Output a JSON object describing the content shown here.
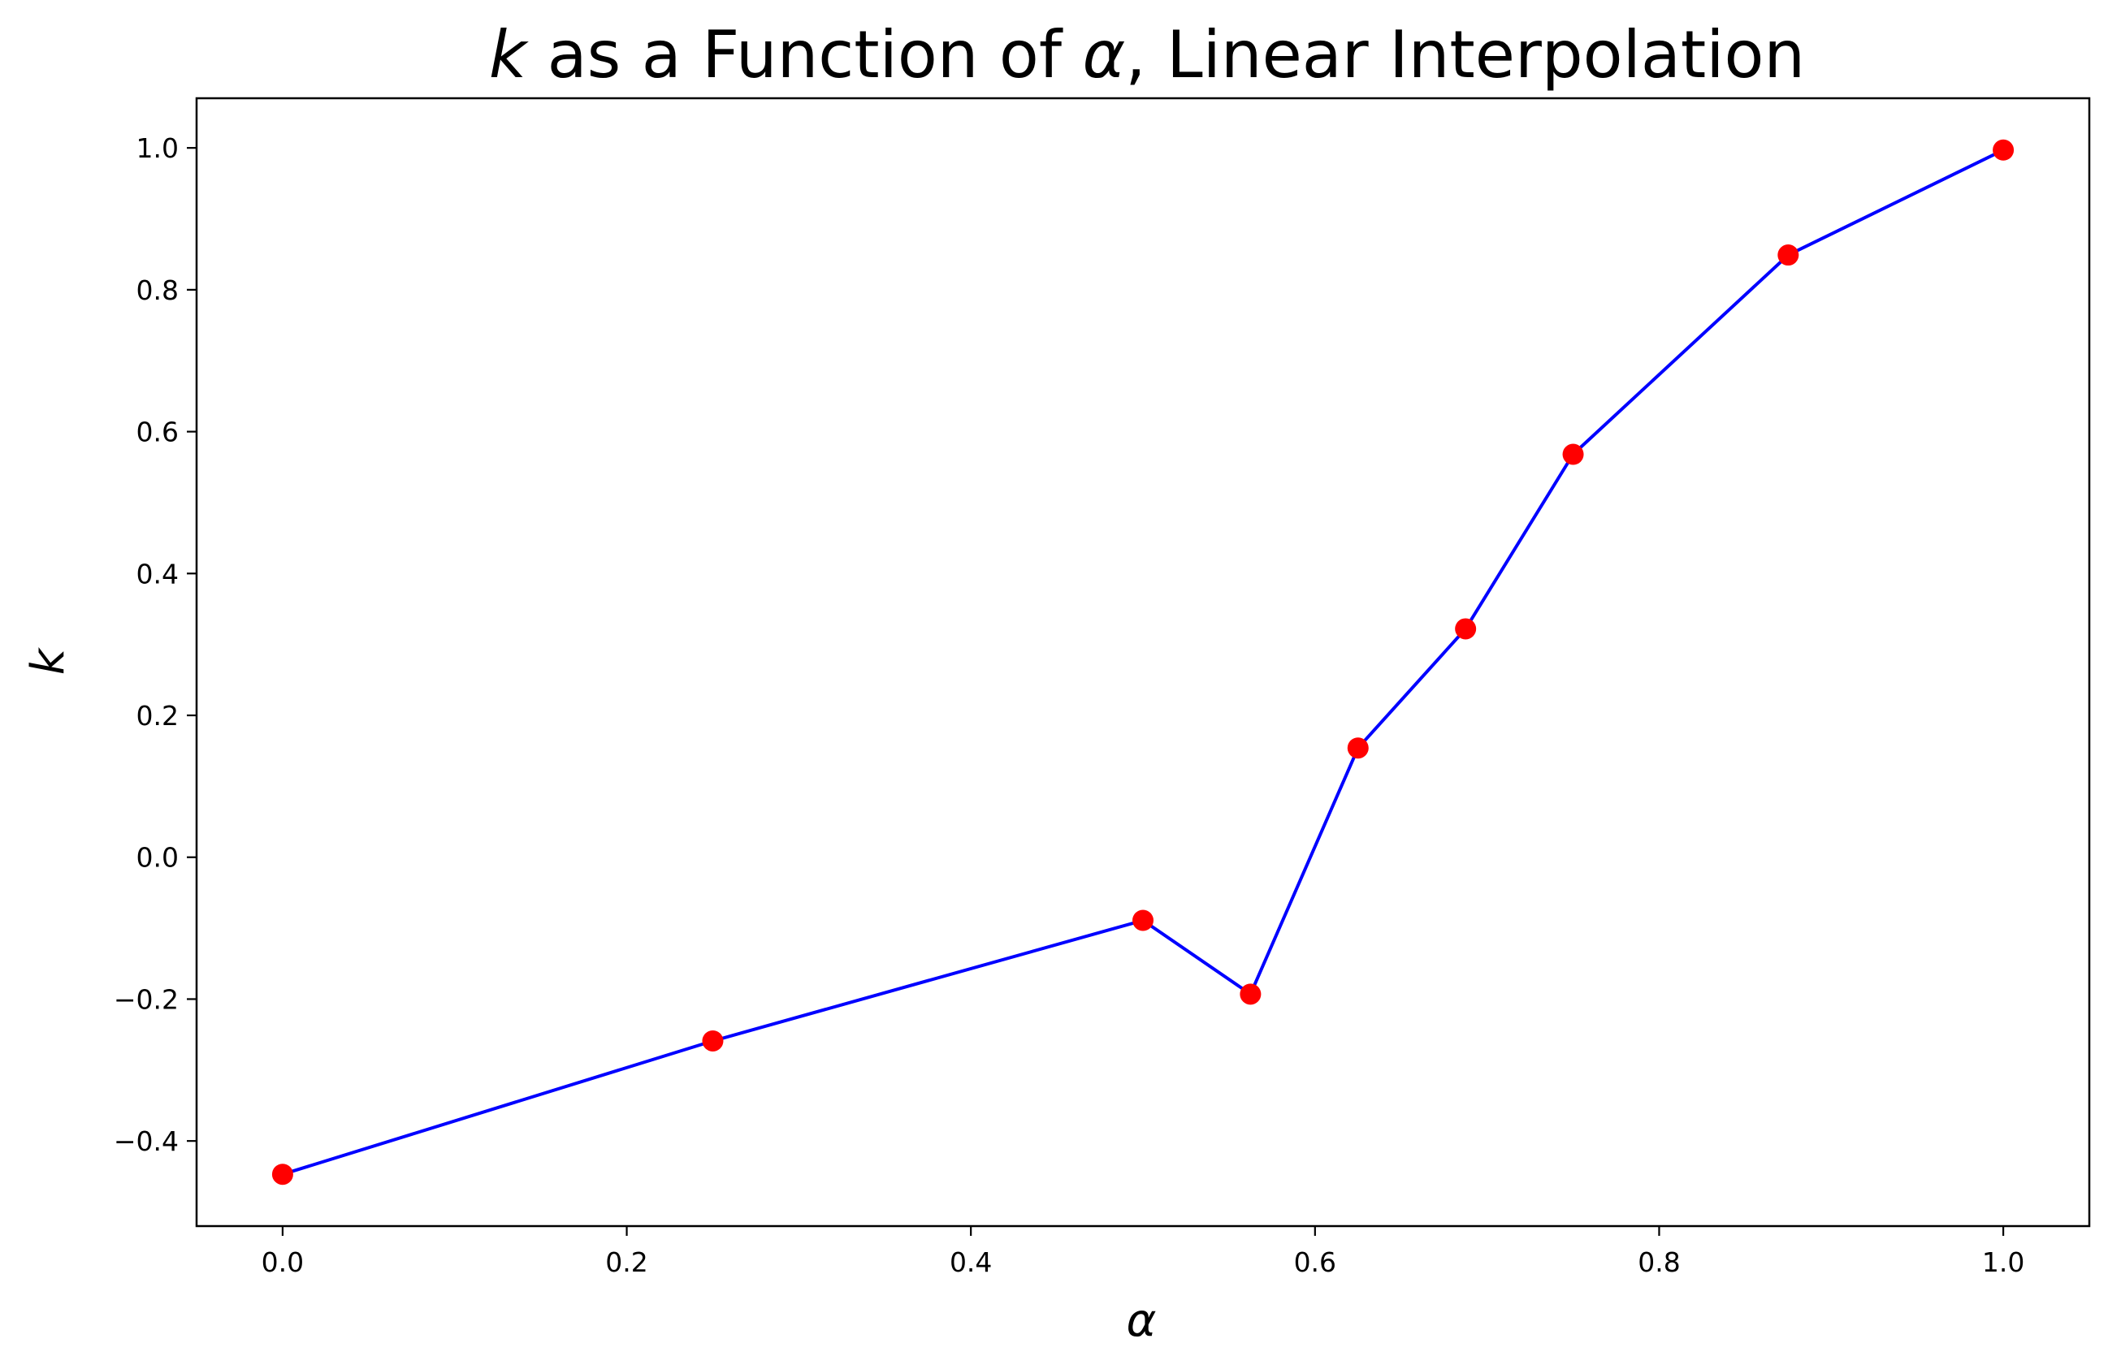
{
  "chart_data": {
    "type": "line",
    "title": {
      "var1": "k",
      "part1": " as a Function of ",
      "var2": "α",
      "part2": ", Linear Interpolation"
    },
    "xlabel": "α",
    "ylabel": "k",
    "xlim": [
      -0.05,
      1.05
    ],
    "ylim": [
      -0.52,
      1.07
    ],
    "x_ticks": [
      0.0,
      0.2,
      0.4,
      0.6,
      0.8,
      1.0
    ],
    "x_tick_labels": [
      "0.0",
      "0.2",
      "0.4",
      "0.6",
      "0.8",
      "1.0"
    ],
    "y_ticks": [
      -0.4,
      -0.2,
      0.0,
      0.2,
      0.4,
      0.6,
      0.8,
      1.0
    ],
    "y_tick_labels": [
      "−0.4",
      "−0.2",
      "0.0",
      "0.2",
      "0.4",
      "0.6",
      "0.8",
      "1.0"
    ],
    "grid": false,
    "series": [
      {
        "line_color": "#0000ff",
        "marker_color": "#ff0000",
        "x": [
          0.0,
          0.25,
          0.5,
          0.5625,
          0.625,
          0.6875,
          0.75,
          0.875,
          1.0
        ],
        "y": [
          -0.447,
          -0.259,
          -0.089,
          -0.193,
          0.154,
          0.322,
          0.568,
          0.849,
          0.997
        ]
      }
    ]
  }
}
